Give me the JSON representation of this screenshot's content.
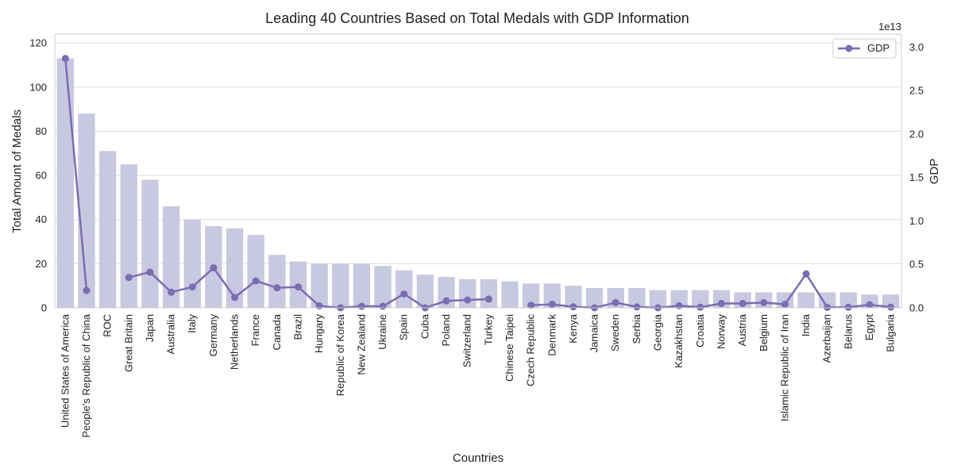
{
  "chart_data": {
    "type": "bar",
    "title": "Leading 40 Countries Based on Total Medals with GDP Information",
    "xlabel": "Countries",
    "ylabel": "Total Amount of Medals",
    "y2label": "GDP",
    "y2_offset_text": "1e13",
    "ylim": [
      0,
      124
    ],
    "y2lim": [
      0,
      3.15
    ],
    "yticks": [
      0,
      20,
      40,
      60,
      80,
      100,
      120
    ],
    "y2ticks": [
      "0.0",
      "0.5",
      "1.0",
      "1.5",
      "2.0",
      "2.5",
      "3.0"
    ],
    "grid": true,
    "legend_position": "top-right",
    "colors": {
      "bar": "#c8c8e0",
      "line": "#7a6db2"
    },
    "categories": [
      "United States of America",
      "People's Republic of China",
      "ROC",
      "Great Britain",
      "Japan",
      "Australia",
      "Italy",
      "Germany",
      "Netherlands",
      "France",
      "Canada",
      "Brazil",
      "Hungary",
      "Republic of Korea",
      "New Zealand",
      "Ukraine",
      "Spain",
      "Cuba",
      "Poland",
      "Switzerland",
      "Turkey",
      "Chinese Taipei",
      "Czech Republic",
      "Denmark",
      "Kenya",
      "Jamaica",
      "Sweden",
      "Serbia",
      "Georgia",
      "Kazakhstan",
      "Croatia",
      "Norway",
      "Austria",
      "Belgium",
      "Islamic Republic of Iran",
      "India",
      "Azerbaijan",
      "Belarus",
      "Egypt",
      "Bulgaria"
    ],
    "series": [
      {
        "kind": "bar",
        "values": [
          113,
          88,
          71,
          65,
          58,
          46,
          40,
          37,
          36,
          33,
          24,
          21,
          20,
          20,
          20,
          19,
          17,
          15,
          14,
          13,
          13,
          12,
          11,
          11,
          10,
          9,
          9,
          9,
          8,
          8,
          8,
          8,
          7,
          7,
          7,
          7,
          7,
          7,
          6,
          6
        ]
      },
      {
        "kind": "line",
        "name": "GDP",
        "values": [
          2.87,
          0.2,
          null,
          0.35,
          0.41,
          0.18,
          0.24,
          0.46,
          0.12,
          0.31,
          0.23,
          0.24,
          0.022,
          0.0,
          0.018,
          0.018,
          0.16,
          0.0,
          0.08,
          0.09,
          0.1,
          null,
          0.03,
          0.04,
          0.011,
          0.0,
          0.06,
          0.01,
          0.0,
          0.024,
          0.007,
          0.05,
          0.05,
          0.06,
          0.04,
          0.39,
          0.005,
          0.007,
          0.035,
          0.008
        ]
      }
    ]
  }
}
